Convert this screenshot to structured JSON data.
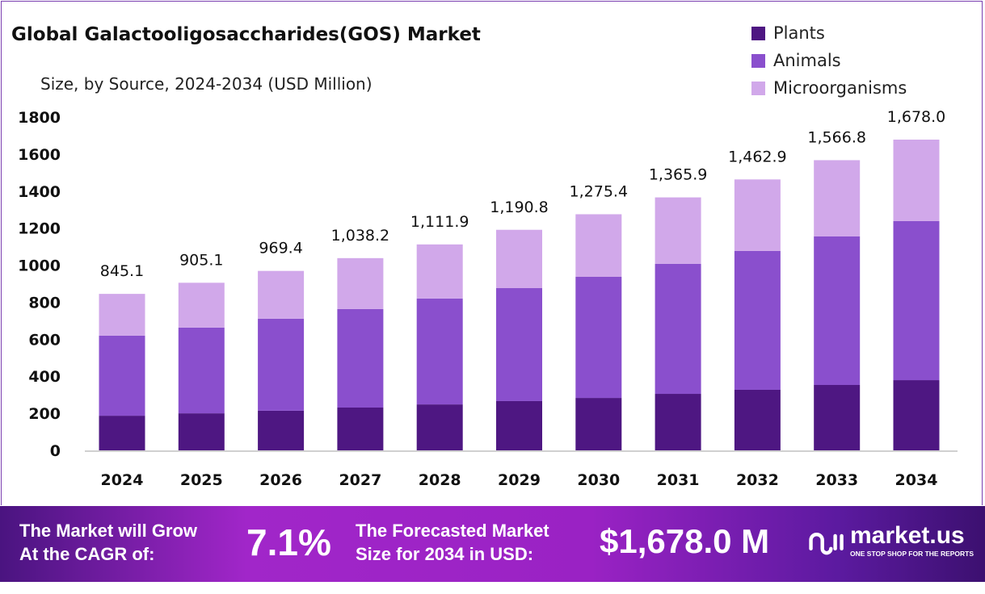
{
  "chart_data": {
    "type": "bar",
    "stacked": true,
    "title": "Global Galactooligosaccharides(GOS) Market",
    "subtitle": "Size, by Source, 2024-2034 (USD Million)",
    "categories": [
      "2024",
      "2025",
      "2026",
      "2027",
      "2028",
      "2029",
      "2030",
      "2031",
      "2032",
      "2033",
      "2034"
    ],
    "series": [
      {
        "name": "Plants",
        "color": "#4e1782",
        "values": [
          187,
          200,
          214,
          231,
          248,
          266,
          283,
          305,
          327,
          353,
          379
        ]
      },
      {
        "name": "Animals",
        "color": "#8a4fcd",
        "values": [
          432,
          463,
          497,
          532,
          572,
          610,
          654,
          702,
          750,
          802,
          859
        ]
      },
      {
        "name": "Microorganisms",
        "color": "#d1a8ea",
        "values": [
          226,
          242,
          258,
          275,
          292,
          315,
          338,
          359,
          386,
          412,
          440
        ]
      }
    ],
    "totals": [
      "845.1",
      "905.1",
      "969.4",
      "1,038.2",
      "1,111.9",
      "1,190.8",
      "1,275.4",
      "1,365.9",
      "1,462.9",
      "1,566.8",
      "1,678.0"
    ],
    "yticks": [
      "0",
      "200",
      "400",
      "600",
      "800",
      "1000",
      "1200",
      "1400",
      "1600",
      "1800"
    ],
    "ylim": [
      0,
      1800
    ],
    "grid": false,
    "legend": "top-right"
  },
  "banner": {
    "cagr_label_1": "The Market will Grow",
    "cagr_label_2": "At the CAGR of:",
    "cagr_value": "7.1%",
    "forecast_label_1": "The Forecasted Market",
    "forecast_label_2": "Size for 2034 in USD:",
    "forecast_value": "$1,678.0 M",
    "logo_text": "market.us",
    "logo_tagline": "ONE STOP SHOP FOR THE REPORTS"
  }
}
